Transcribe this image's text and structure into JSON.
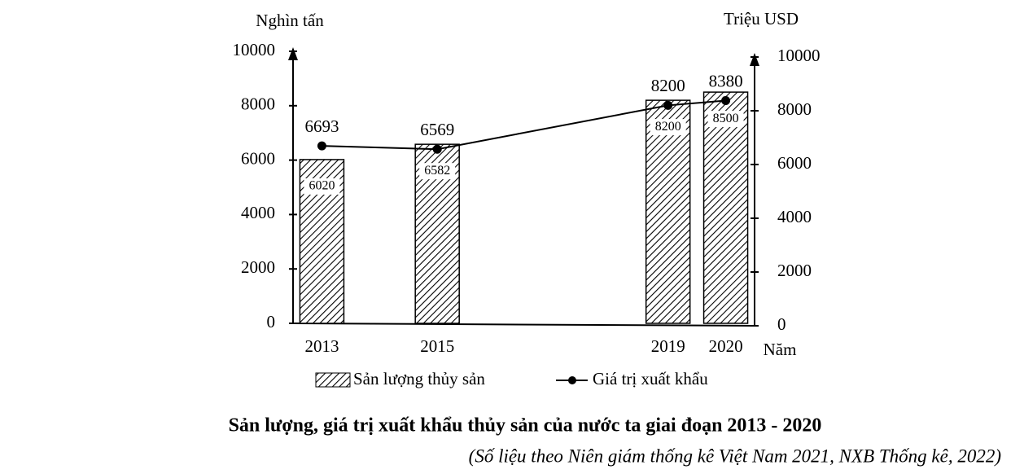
{
  "chart_data": {
    "type": "bar",
    "title": "Sản lượng, giá trị xuất khẩu thủy sản của nước ta giai đoạn 2013 - 2020",
    "subtitle": "(Số liệu theo Niên giám thống kê Việt Nam 2021, NXB Thống kê, 2022)",
    "ylabel": "Nghìn tấn",
    "y2label": "Triệu USD",
    "xlabel": "Năm",
    "x": [
      2013,
      2015,
      2019,
      2020
    ],
    "xlim": [
      2012.5,
      2020.5
    ],
    "xticks": [
      2013,
      2015,
      2019,
      2020
    ],
    "ylim": [
      0,
      10000
    ],
    "yticks": [
      0,
      2000,
      4000,
      6000,
      8000,
      10000
    ],
    "y2lim": [
      0,
      10000
    ],
    "y2ticks": [
      0,
      2000,
      4000,
      6000,
      8000,
      10000
    ],
    "series": [
      {
        "name": "Sản lượng thủy sản",
        "type": "bar",
        "color": "#000000",
        "values": [
          6020,
          6582,
          8200,
          8500
        ]
      },
      {
        "name": "Giá trị xuất khẩu",
        "type": "line",
        "axis": "y2",
        "color": "#000000",
        "values": [
          6693,
          6569,
          8200,
          8380
        ]
      }
    ]
  }
}
